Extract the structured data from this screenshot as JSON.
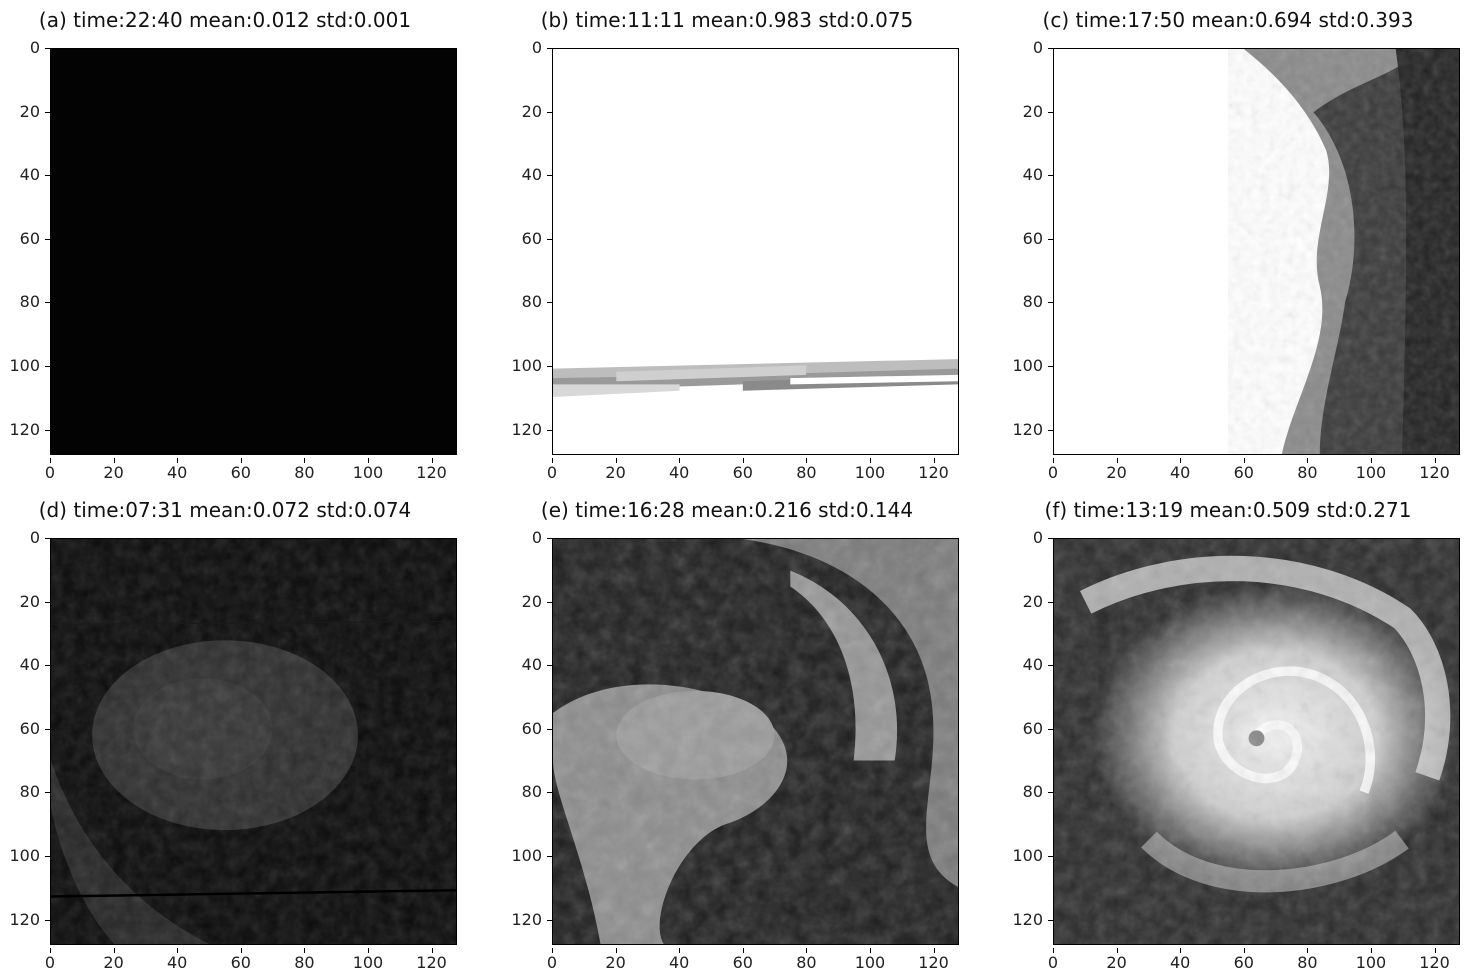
{
  "panels": [
    {
      "title": "(a) time:22:40 mean:0.012 std:0.001",
      "image": "uniform-black-frame"
    },
    {
      "title": "(b) time:11:11 mean:0.983 std:0.075",
      "image": "white-frame-with-grey-scan-band"
    },
    {
      "title": "(c) time:17:50 mean:0.694 std:0.393",
      "image": "white-left-region-dark-right-edge"
    },
    {
      "title": "(d) time:07:31 mean:0.072 std:0.074",
      "image": "dark-cyclone-infrared"
    },
    {
      "title": "(e) time:16:28 mean:0.216 std:0.144",
      "image": "grey-cloud-band-cyclone"
    },
    {
      "title": "(f) time:13:19 mean:0.509 std:0.271",
      "image": "bright-spiral-cyclone"
    }
  ],
  "axis": {
    "y_ticks": [
      "0",
      "20",
      "40",
      "60",
      "80",
      "100",
      "120"
    ],
    "x_ticks": [
      "0",
      "20",
      "40",
      "60",
      "80",
      "100",
      "120"
    ],
    "range": [
      0,
      128
    ]
  },
  "colors": {
    "background": "#ffffff",
    "frame": "#000000"
  }
}
